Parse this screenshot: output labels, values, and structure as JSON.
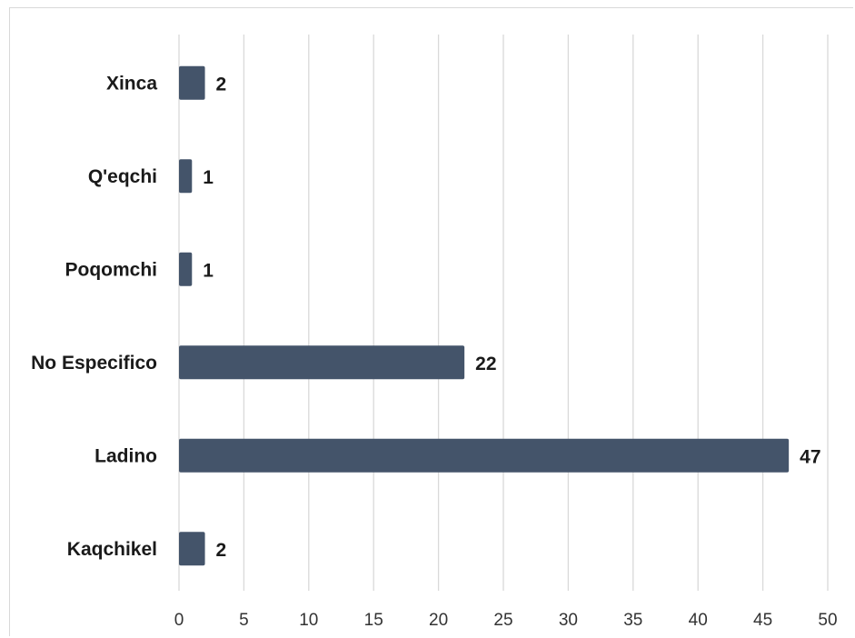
{
  "chart_data": {
    "type": "bar",
    "orientation": "horizontal",
    "categories": [
      "Xinca",
      "Q'eqchi",
      "Poqomchi",
      "No Especifico",
      "Ladino",
      "Kaqchikel"
    ],
    "values": [
      2,
      1,
      1,
      22,
      47,
      2
    ],
    "value_labels": [
      "2",
      "1",
      "1",
      "22",
      "47",
      "2"
    ],
    "x_ticks": [
      "0",
      "5",
      "10",
      "15",
      "20",
      "25",
      "30",
      "35",
      "40",
      "45",
      "50"
    ],
    "xlim": [
      0,
      50
    ],
    "title": "",
    "xlabel": "",
    "ylabel": "",
    "grid": "vertical gridlines",
    "legend": "none",
    "bar_color": "#44546a"
  }
}
